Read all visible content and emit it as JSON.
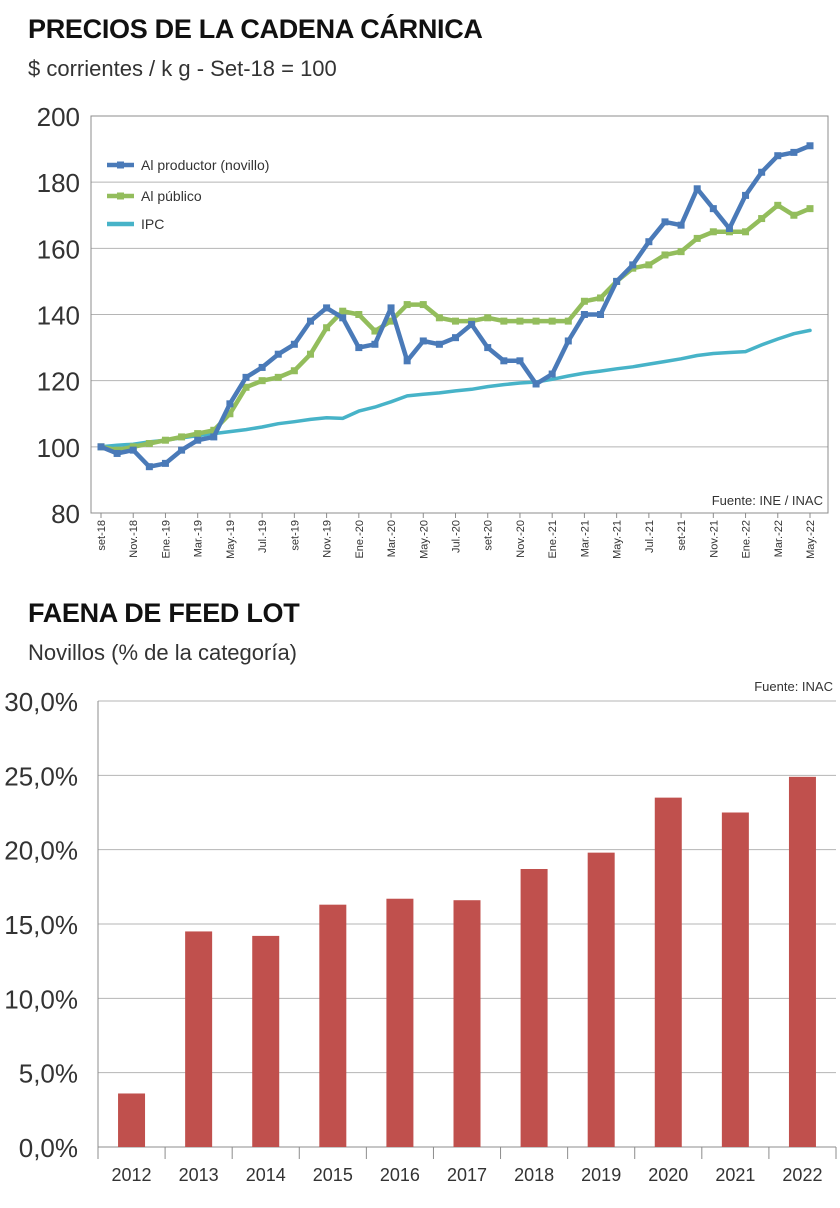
{
  "chart_data": [
    {
      "type": "line",
      "title": "PRECIOS DE LA CADENA CÁRNICA",
      "subtitle": "$ corrientes / k g - Set-18 = 100",
      "source": "Fuente: INE / INAC",
      "ylim": [
        80,
        200
      ],
      "yticks": [
        "80",
        "100",
        "120",
        "140",
        "160",
        "180",
        "200"
      ],
      "yticks_values": [
        80,
        100,
        120,
        140,
        160,
        180,
        200
      ],
      "x_tick_labels": [
        "set-18",
        "Nov.-18",
        "Ene.-19",
        "Mar.-19",
        "May.-19",
        "Jul.-19",
        "set-19",
        "Nov.-19",
        "Ene.-20",
        "Mar.-20",
        "May.-20",
        "Jul.-20",
        "set-20",
        "Nov.-20",
        "Ene.-21",
        "Mar.-21",
        "May.-21",
        "Jul.-21",
        "set-21",
        "Nov.-21",
        "Ene.-22",
        "Mar.-22",
        "May.-22"
      ],
      "legend_position": "top-left",
      "grid": true,
      "series": [
        {
          "name": "Al productor (novillo)",
          "color": "#4a7ab8",
          "values": [
            100,
            98,
            99,
            94,
            95,
            99,
            102,
            103,
            113,
            121,
            124,
            128,
            131,
            138,
            142,
            139,
            130,
            131,
            142,
            126,
            132,
            131,
            133,
            137,
            130,
            126,
            126,
            119,
            122,
            132,
            140,
            140,
            150,
            155,
            162,
            168,
            167,
            178,
            172,
            166,
            176,
            183,
            188,
            189,
            191
          ]
        },
        {
          "name": "Al público",
          "color": "#93bd5c",
          "values": [
            100,
            99,
            100,
            101,
            102,
            103,
            104,
            105,
            110,
            118,
            120,
            121,
            123,
            128,
            136,
            141,
            140,
            135,
            138,
            143,
            143,
            139,
            138,
            138,
            139,
            138,
            138,
            138,
            138,
            138,
            144,
            145,
            150,
            154,
            155,
            158,
            159,
            163,
            165,
            165,
            165,
            169,
            173,
            170,
            172
          ]
        },
        {
          "name": "IPC",
          "color": "#47b3c8",
          "values": [
            100,
            100.5,
            100.8,
            101.5,
            102,
            102.7,
            103.4,
            104,
            104.6,
            105.2,
            106,
            107,
            107.6,
            108.3,
            108.8,
            108.6,
            110.8,
            112,
            113.6,
            115.4,
            115.9,
            116.3,
            116.9,
            117.4,
            118.2,
            118.8,
            119.3,
            119.6,
            120.4,
            121.4,
            122.3,
            122.9,
            123.6,
            124.2,
            125,
            125.8,
            126.6,
            127.6,
            128.2,
            128.5,
            128.8,
            130.8,
            132.6,
            134.2,
            135.2
          ]
        }
      ]
    },
    {
      "type": "bar",
      "title": "FAENA DE FEED LOT",
      "subtitle": "Novillos (% de la categoría)",
      "source": "Fuente: INAC",
      "categories": [
        "2012",
        "2013",
        "2014",
        "2015",
        "2016",
        "2017",
        "2018",
        "2019",
        "2020",
        "2021",
        "2022"
      ],
      "values": [
        3.6,
        14.5,
        14.2,
        16.3,
        16.7,
        16.6,
        18.7,
        19.8,
        23.5,
        22.5,
        24.9
      ],
      "ylim": [
        0,
        30
      ],
      "yticks": [
        "0,0%",
        "5,0%",
        "10,0%",
        "15,0%",
        "20,0%",
        "25,0%",
        "30,0%"
      ],
      "yticks_values": [
        0,
        5,
        10,
        15,
        20,
        25,
        30
      ],
      "bar_color": "#c0504d",
      "grid": true
    }
  ]
}
